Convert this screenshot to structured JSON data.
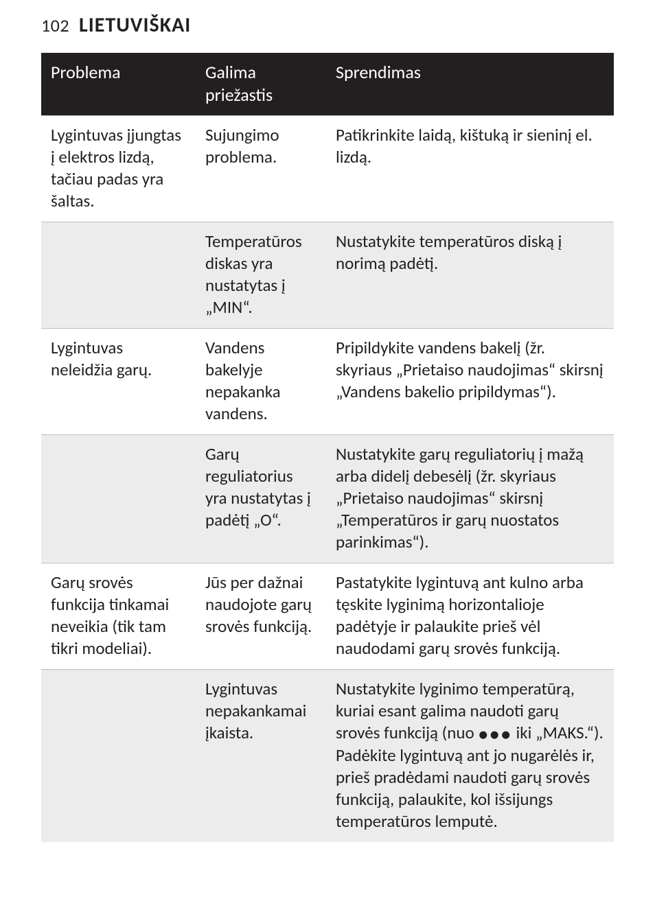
{
  "page": {
    "number": "102",
    "title": "LIETUVIŠKAI"
  },
  "table": {
    "headers": {
      "h1": "Problema",
      "h2": "Galima priežastis",
      "h3": "Sprendimas"
    },
    "rows": [
      {
        "shaded": false,
        "problem": "Lygintuvas įjungtas į elektros lizdą, tačiau padas yra šaltas.",
        "cause": "Sujungimo problema.",
        "solution": "Patikrinkite laidą, kištuką ir sieninį el. lizdą."
      },
      {
        "shaded": true,
        "problem": "",
        "cause": "Temperatūros diskas yra nustatytas į „MIN“.",
        "solution": "Nustatykite temperatūros diską į norimą padėtį."
      },
      {
        "shaded": false,
        "problem": "Lygintuvas neleidžia garų.",
        "cause": "Vandens bakelyje nepakanka vandens.",
        "solution": "Pripildykite vandens bakelį (žr. skyriaus „Prietaiso naudojimas“ skirsnį „Vandens bakelio pripildymas“)."
      },
      {
        "shaded": true,
        "problem": "",
        "cause": "Garų reguliatorius yra nustatytas į padėtį „O“.",
        "solution": "Nustatykite garų reguliatorių į mažą arba didelį debesėlį (žr. skyriaus „Prietaiso naudojimas“ skirsnį „Temperatūros ir garų nuostatos parinkimas“)."
      },
      {
        "shaded": false,
        "problem": "Garų srovės funkcija tinkamai neveikia (tik tam tikri modeliai).",
        "cause": "Jūs per dažnai naudojote garų srovės funkciją.",
        "solution": "Pastatykite lygintuvą ant kulno arba tęskite lyginimą horizontalioje padėtyje ir palaukite prieš vėl naudodami garų srovės funkciją."
      },
      {
        "shaded": true,
        "problem": "",
        "cause": "Lygintuvas nepakankamai įkaista.",
        "solution_pre": "Nustatykite lyginimo temperatūrą, kuriai esant galima naudoti garų srovės funkciją (nuo ",
        "dots": "●●●",
        "solution_post": " iki „MAKS.“). Padėkite lygintuvą ant jo nugarėlės ir, prieš pradėdami naudoti garų srovės funkciją, palaukite, kol išsijungs temperatūros lemputė."
      }
    ]
  }
}
